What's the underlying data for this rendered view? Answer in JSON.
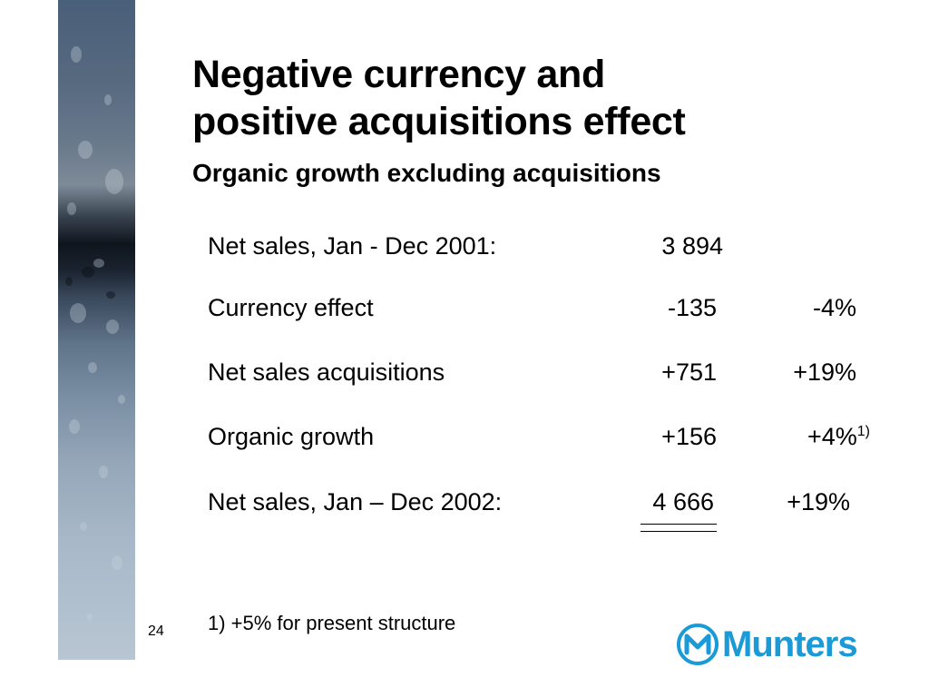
{
  "slide": {
    "title_line1": "Negative currency and",
    "title_line2": "positive acquisitions effect",
    "subtitle": "Organic growth excluding acquisitions",
    "rows": [
      {
        "label": "Net sales, Jan - Dec 2001:",
        "amount": "3 894",
        "pct": ""
      },
      {
        "label": "Currency effect",
        "amount": "-135",
        "pct": "-4%"
      },
      {
        "label": "Net sales acquisitions",
        "amount": "+751",
        "pct": "+19%"
      },
      {
        "label": "Organic growth",
        "amount": "+156",
        "pct": "+4%",
        "note": "1)"
      },
      {
        "label": "Net sales, Jan – Dec 2002:",
        "amount": "4 666",
        "pct": "+19%"
      }
    ],
    "footnote": "1) +5% for present structure",
    "page_number": "24"
  },
  "logo": {
    "name": "Munters",
    "color": "#1a9ad6"
  },
  "icons": {
    "side_image": "water-droplets-image",
    "logo_mark": "munters-m-logo-icon"
  }
}
